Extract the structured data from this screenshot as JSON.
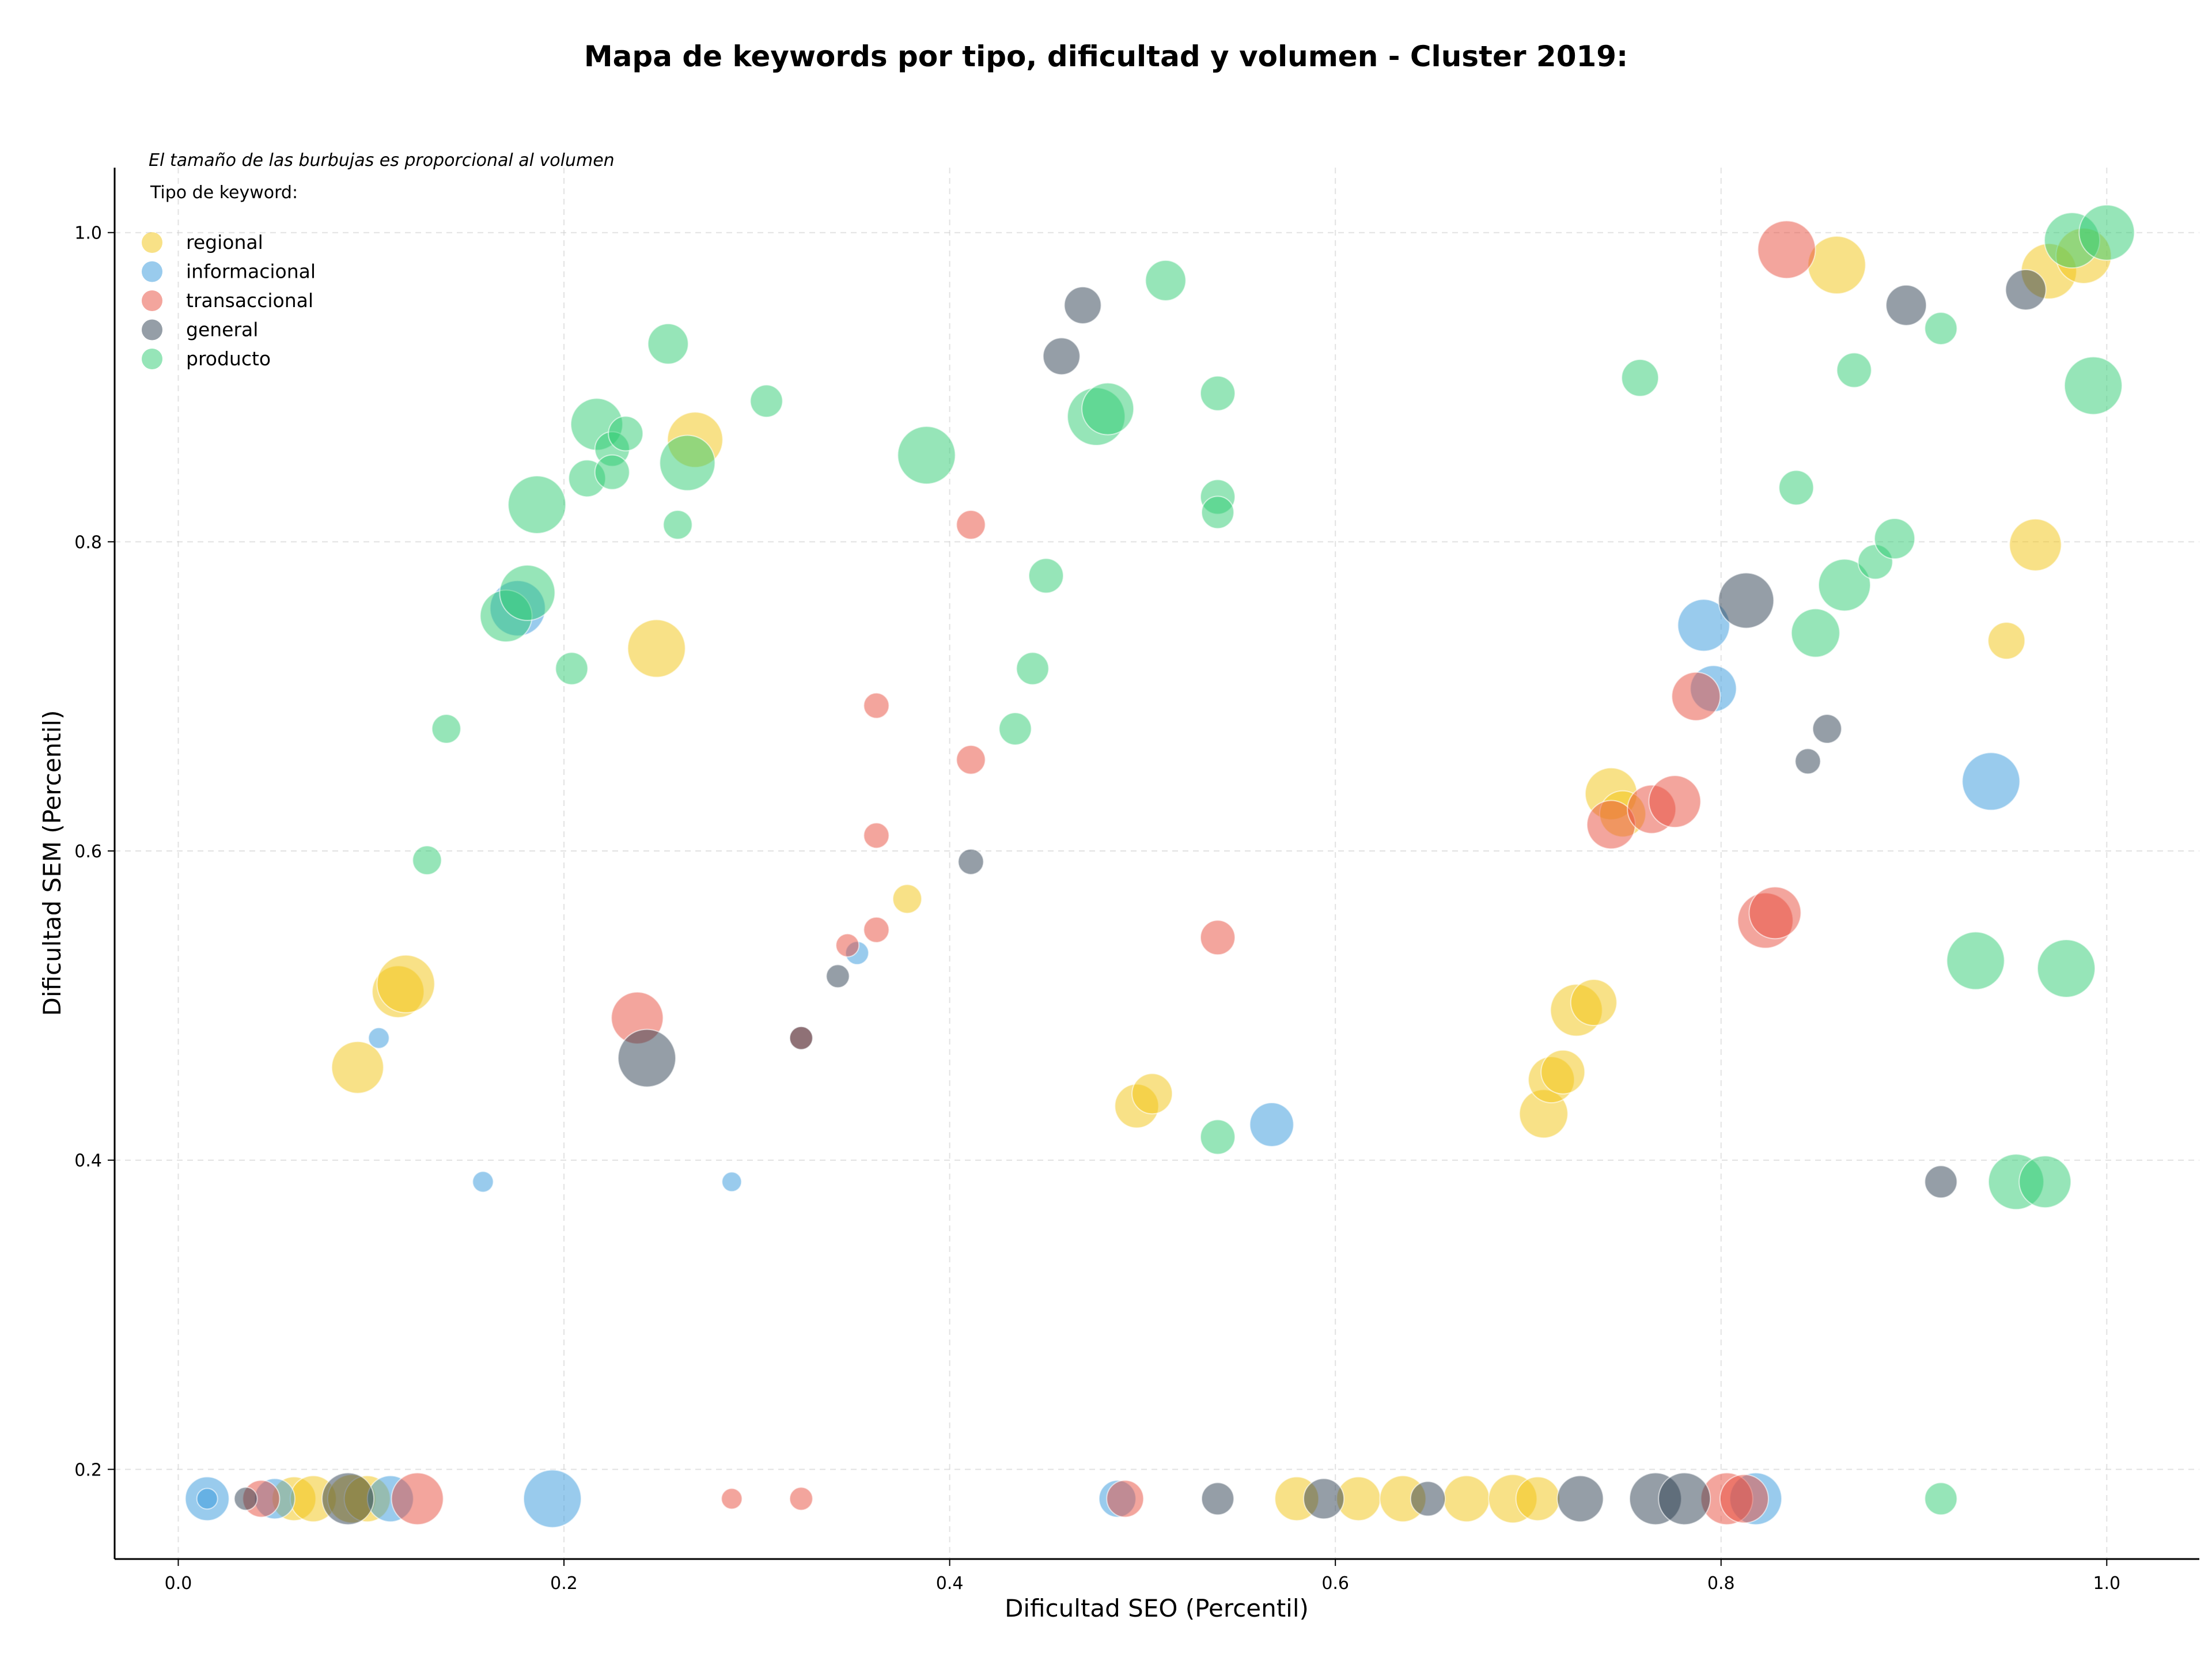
{
  "chart_data": {
    "type": "scatter",
    "title": "Mapa de keywords por tipo, dificultad y volumen - Cluster 2019:",
    "xlabel": "Dificultad SEO (Percentil)",
    "ylabel": "Dificultad SEM (Percentil)",
    "xlim": [
      -0.033,
      1.048
    ],
    "ylim": [
      0.142,
      1.042
    ],
    "xticks": [
      "0.0",
      "0.2",
      "0.4",
      "0.6",
      "0.8",
      "1.0"
    ],
    "yticks": [
      "0.2",
      "0.4",
      "0.6",
      "0.8",
      "1.0"
    ],
    "grid": true,
    "legend": {
      "note": "El tamaño de las burbujas es proporcional al volumen",
      "title": "Tipo de keyword:",
      "placement": "top-left"
    },
    "series": [
      {
        "name": "regional",
        "color": "#F1C40F",
        "points": [
          {
            "x": 0.093,
            "y": 0.46,
            "size": 45
          },
          {
            "x": 0.114,
            "y": 0.509,
            "size": 45
          },
          {
            "x": 0.118,
            "y": 0.514,
            "size": 50
          },
          {
            "x": 0.248,
            "y": 0.731,
            "size": 50
          },
          {
            "x": 0.268,
            "y": 0.866,
            "size": 48
          },
          {
            "x": 0.378,
            "y": 0.569,
            "size": 25
          },
          {
            "x": 0.497,
            "y": 0.435,
            "size": 38
          },
          {
            "x": 0.505,
            "y": 0.443,
            "size": 35
          },
          {
            "x": 0.708,
            "y": 0.43,
            "size": 42
          },
          {
            "x": 0.712,
            "y": 0.452,
            "size": 40
          },
          {
            "x": 0.718,
            "y": 0.457,
            "size": 38
          },
          {
            "x": 0.725,
            "y": 0.497,
            "size": 45
          },
          {
            "x": 0.734,
            "y": 0.502,
            "size": 40
          },
          {
            "x": 0.743,
            "y": 0.637,
            "size": 45
          },
          {
            "x": 0.749,
            "y": 0.624,
            "size": 40
          },
          {
            "x": 0.86,
            "y": 0.979,
            "size": 50
          },
          {
            "x": 0.948,
            "y": 0.736,
            "size": 32
          },
          {
            "x": 0.963,
            "y": 0.798,
            "size": 45
          },
          {
            "x": 0.97,
            "y": 0.975,
            "size": 48
          },
          {
            "x": 0.988,
            "y": 0.985,
            "size": 48
          },
          {
            "x": 0.06,
            "y": 0.181,
            "size": 38
          },
          {
            "x": 0.07,
            "y": 0.181,
            "size": 40
          },
          {
            "x": 0.09,
            "y": 0.181,
            "size": 42
          },
          {
            "x": 0.098,
            "y": 0.181,
            "size": 40
          },
          {
            "x": 0.58,
            "y": 0.181,
            "size": 38
          },
          {
            "x": 0.612,
            "y": 0.181,
            "size": 38
          },
          {
            "x": 0.635,
            "y": 0.181,
            "size": 40
          },
          {
            "x": 0.668,
            "y": 0.181,
            "size": 40
          },
          {
            "x": 0.692,
            "y": 0.181,
            "size": 42
          },
          {
            "x": 0.705,
            "y": 0.181,
            "size": 38
          }
        ]
      },
      {
        "name": "informacional",
        "color": "#3498DB",
        "points": [
          {
            "x": 0.104,
            "y": 0.479,
            "size": 18
          },
          {
            "x": 0.158,
            "y": 0.386,
            "size": 18
          },
          {
            "x": 0.176,
            "y": 0.757,
            "size": 48
          },
          {
            "x": 0.287,
            "y": 0.386,
            "size": 17
          },
          {
            "x": 0.352,
            "y": 0.534,
            "size": 20
          },
          {
            "x": 0.567,
            "y": 0.423,
            "size": 38
          },
          {
            "x": 0.791,
            "y": 0.746,
            "size": 45
          },
          {
            "x": 0.796,
            "y": 0.705,
            "size": 40
          },
          {
            "x": 0.94,
            "y": 0.645,
            "size": 50
          },
          {
            "x": 0.015,
            "y": 0.181,
            "size": 38
          },
          {
            "x": 0.015,
            "y": 0.181,
            "size": 18
          },
          {
            "x": 0.05,
            "y": 0.181,
            "size": 35
          },
          {
            "x": 0.11,
            "y": 0.181,
            "size": 40
          },
          {
            "x": 0.194,
            "y": 0.181,
            "size": 50
          },
          {
            "x": 0.487,
            "y": 0.181,
            "size": 32
          },
          {
            "x": 0.818,
            "y": 0.181,
            "size": 45
          }
        ]
      },
      {
        "name": "transaccional",
        "color": "#E74C3C",
        "points": [
          {
            "x": 0.238,
            "y": 0.492,
            "size": 45
          },
          {
            "x": 0.323,
            "y": 0.479,
            "size": 20
          },
          {
            "x": 0.347,
            "y": 0.539,
            "size": 20
          },
          {
            "x": 0.362,
            "y": 0.549,
            "size": 22
          },
          {
            "x": 0.362,
            "y": 0.61,
            "size": 22
          },
          {
            "x": 0.362,
            "y": 0.694,
            "size": 22
          },
          {
            "x": 0.411,
            "y": 0.659,
            "size": 25
          },
          {
            "x": 0.411,
            "y": 0.811,
            "size": 25
          },
          {
            "x": 0.539,
            "y": 0.544,
            "size": 30
          },
          {
            "x": 0.743,
            "y": 0.617,
            "size": 42
          },
          {
            "x": 0.764,
            "y": 0.627,
            "size": 42
          },
          {
            "x": 0.776,
            "y": 0.632,
            "size": 45
          },
          {
            "x": 0.787,
            "y": 0.7,
            "size": 42
          },
          {
            "x": 0.823,
            "y": 0.555,
            "size": 48
          },
          {
            "x": 0.828,
            "y": 0.56,
            "size": 45
          },
          {
            "x": 0.834,
            "y": 0.989,
            "size": 50
          },
          {
            "x": 0.043,
            "y": 0.181,
            "size": 32
          },
          {
            "x": 0.124,
            "y": 0.181,
            "size": 45
          },
          {
            "x": 0.287,
            "y": 0.181,
            "size": 18
          },
          {
            "x": 0.323,
            "y": 0.181,
            "size": 20
          },
          {
            "x": 0.491,
            "y": 0.181,
            "size": 32
          },
          {
            "x": 0.803,
            "y": 0.181,
            "size": 45
          },
          {
            "x": 0.812,
            "y": 0.181,
            "size": 42
          }
        ]
      },
      {
        "name": "general",
        "color": "#2C3E50",
        "points": [
          {
            "x": 0.243,
            "y": 0.466,
            "size": 50
          },
          {
            "x": 0.323,
            "y": 0.479,
            "size": 20
          },
          {
            "x": 0.342,
            "y": 0.519,
            "size": 20
          },
          {
            "x": 0.411,
            "y": 0.593,
            "size": 22
          },
          {
            "x": 0.458,
            "y": 0.92,
            "size": 32
          },
          {
            "x": 0.469,
            "y": 0.953,
            "size": 32
          },
          {
            "x": 0.813,
            "y": 0.762,
            "size": 48
          },
          {
            "x": 0.845,
            "y": 0.658,
            "size": 22
          },
          {
            "x": 0.855,
            "y": 0.679,
            "size": 25
          },
          {
            "x": 0.896,
            "y": 0.953,
            "size": 35
          },
          {
            "x": 0.914,
            "y": 0.386,
            "size": 28
          },
          {
            "x": 0.958,
            "y": 0.963,
            "size": 35
          },
          {
            "x": 0.035,
            "y": 0.181,
            "size": 20
          },
          {
            "x": 0.088,
            "y": 0.181,
            "size": 45
          },
          {
            "x": 0.539,
            "y": 0.181,
            "size": 28
          },
          {
            "x": 0.594,
            "y": 0.181,
            "size": 35
          },
          {
            "x": 0.648,
            "y": 0.181,
            "size": 30
          },
          {
            "x": 0.727,
            "y": 0.181,
            "size": 40
          },
          {
            "x": 0.766,
            "y": 0.181,
            "size": 45
          },
          {
            "x": 0.781,
            "y": 0.181,
            "size": 45
          }
        ]
      },
      {
        "name": "producto",
        "color": "#2ECC71",
        "points": [
          {
            "x": 0.129,
            "y": 0.594,
            "size": 25
          },
          {
            "x": 0.139,
            "y": 0.679,
            "size": 25
          },
          {
            "x": 0.17,
            "y": 0.752,
            "size": 45
          },
          {
            "x": 0.181,
            "y": 0.767,
            "size": 48
          },
          {
            "x": 0.186,
            "y": 0.824,
            "size": 50
          },
          {
            "x": 0.204,
            "y": 0.718,
            "size": 28
          },
          {
            "x": 0.212,
            "y": 0.841,
            "size": 32
          },
          {
            "x": 0.217,
            "y": 0.876,
            "size": 45
          },
          {
            "x": 0.225,
            "y": 0.86,
            "size": 30
          },
          {
            "x": 0.225,
            "y": 0.845,
            "size": 30
          },
          {
            "x": 0.232,
            "y": 0.87,
            "size": 30
          },
          {
            "x": 0.254,
            "y": 0.928,
            "size": 35
          },
          {
            "x": 0.259,
            "y": 0.811,
            "size": 25
          },
          {
            "x": 0.264,
            "y": 0.851,
            "size": 48
          },
          {
            "x": 0.305,
            "y": 0.891,
            "size": 28
          },
          {
            "x": 0.388,
            "y": 0.856,
            "size": 50
          },
          {
            "x": 0.434,
            "y": 0.679,
            "size": 28
          },
          {
            "x": 0.443,
            "y": 0.718,
            "size": 28
          },
          {
            "x": 0.45,
            "y": 0.778,
            "size": 30
          },
          {
            "x": 0.476,
            "y": 0.881,
            "size": 50
          },
          {
            "x": 0.482,
            "y": 0.886,
            "size": 45
          },
          {
            "x": 0.512,
            "y": 0.969,
            "size": 35
          },
          {
            "x": 0.539,
            "y": 0.896,
            "size": 30
          },
          {
            "x": 0.539,
            "y": 0.829,
            "size": 30
          },
          {
            "x": 0.539,
            "y": 0.819,
            "size": 28
          },
          {
            "x": 0.539,
            "y": 0.415,
            "size": 30
          },
          {
            "x": 0.758,
            "y": 0.906,
            "size": 32
          },
          {
            "x": 0.839,
            "y": 0.835,
            "size": 30
          },
          {
            "x": 0.849,
            "y": 0.741,
            "size": 42
          },
          {
            "x": 0.864,
            "y": 0.772,
            "size": 45
          },
          {
            "x": 0.869,
            "y": 0.911,
            "size": 30
          },
          {
            "x": 0.88,
            "y": 0.787,
            "size": 30
          },
          {
            "x": 0.89,
            "y": 0.802,
            "size": 35
          },
          {
            "x": 0.914,
            "y": 0.938,
            "size": 28
          },
          {
            "x": 0.932,
            "y": 0.529,
            "size": 50
          },
          {
            "x": 0.953,
            "y": 0.386,
            "size": 48
          },
          {
            "x": 0.968,
            "y": 0.386,
            "size": 45
          },
          {
            "x": 0.979,
            "y": 0.524,
            "size": 50
          },
          {
            "x": 0.982,
            "y": 0.995,
            "size": 48
          },
          {
            "x": 0.993,
            "y": 0.901,
            "size": 50
          },
          {
            "x": 1.0,
            "y": 1.0,
            "size": 48
          },
          {
            "x": 0.914,
            "y": 0.181,
            "size": 28
          }
        ]
      }
    ]
  }
}
